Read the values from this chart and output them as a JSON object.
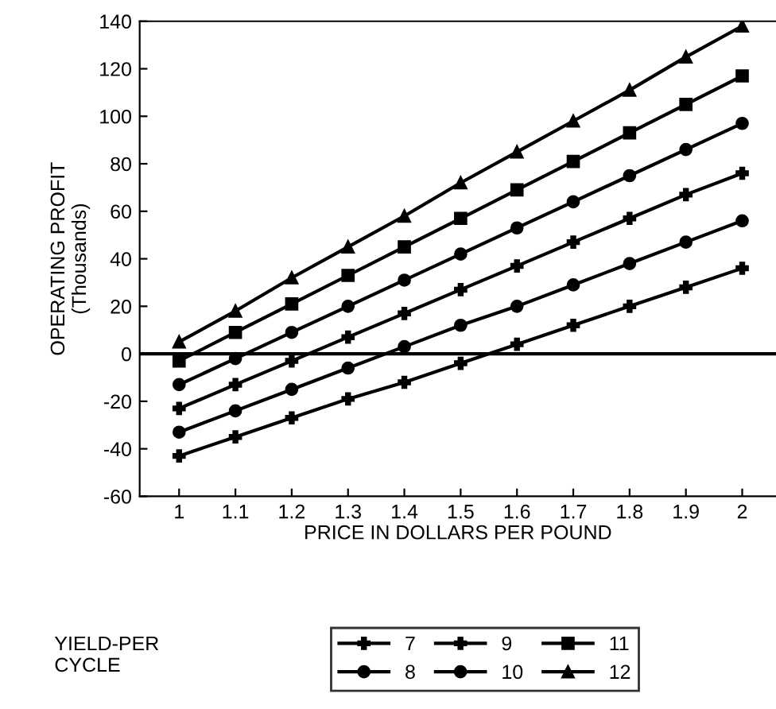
{
  "chart_data": {
    "type": "line",
    "xlabel": "PRICE IN DOLLARS PER POUND",
    "ylabel": "OPERATING PROFIT\n(Thousands)",
    "legend_title": "YIELD-PER\nCYCLE",
    "x": [
      1,
      1.1,
      1.2,
      1.3,
      1.4,
      1.5,
      1.6,
      1.7,
      1.8,
      1.9,
      2
    ],
    "series": [
      {
        "name": "7",
        "color": "#000000",
        "marker": "cross",
        "values": [
          -43,
          -35,
          -27,
          -19,
          -12,
          -4,
          4,
          12,
          20,
          28,
          36
        ]
      },
      {
        "name": "8",
        "color": "#000000",
        "marker": "circle",
        "values": [
          -33,
          -24,
          -15,
          -6,
          3,
          12,
          20,
          29,
          38,
          47,
          56
        ]
      },
      {
        "name": "9",
        "color": "#000000",
        "marker": "cross",
        "values": [
          -23,
          -13,
          -3,
          7,
          17,
          27,
          37,
          47,
          57,
          67,
          76
        ]
      },
      {
        "name": "10",
        "color": "#000000",
        "marker": "circle",
        "values": [
          -13,
          -2,
          9,
          20,
          31,
          42,
          53,
          64,
          75,
          86,
          97
        ]
      },
      {
        "name": "11",
        "color": "#000000",
        "marker": "square",
        "values": [
          -3,
          9,
          21,
          33,
          45,
          57,
          69,
          81,
          93,
          105,
          117
        ]
      },
      {
        "name": "12",
        "color": "#000000",
        "marker": "triangle",
        "values": [
          5,
          18,
          32,
          45,
          58,
          72,
          85,
          98,
          111,
          125,
          138
        ]
      }
    ],
    "xlim": [
      0.93,
      2.06
    ],
    "xticks": [
      1,
      1.1,
      1.2,
      1.3,
      1.4,
      1.5,
      1.6,
      1.7,
      1.8,
      1.9,
      2
    ],
    "ylim": [
      -60,
      140
    ],
    "yticks": [
      -60,
      -40,
      -20,
      0,
      20,
      40,
      60,
      80,
      100,
      120,
      140
    ],
    "ref_lines": [
      {
        "axis": "y",
        "value": 0,
        "color": "#000000"
      }
    ],
    "grid": false,
    "legend": "bottom",
    "line_style": "solid"
  }
}
